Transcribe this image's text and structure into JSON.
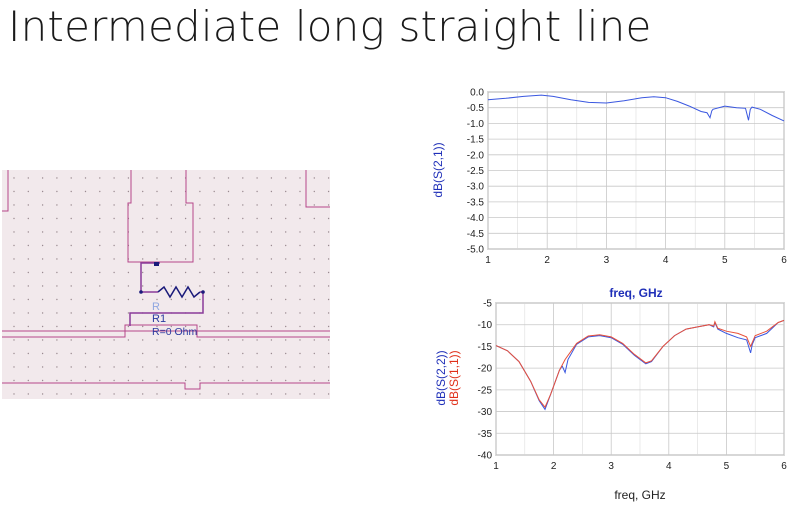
{
  "slide": {
    "title": "Intermediate long straight line"
  },
  "schematic": {
    "component": {
      "prefix": "R",
      "instance": "R1",
      "param": "R=0 Ohm"
    }
  },
  "chart_data": [
    {
      "type": "line",
      "xlabel": "freq, GHz",
      "ylabel": "dB(S(2,1))",
      "xlim": [
        1,
        6
      ],
      "ylim": [
        -5.0,
        0.0
      ],
      "xticks": [
        "1",
        "2",
        "3",
        "4",
        "5",
        "6"
      ],
      "yticks": [
        "0.0",
        "-0.5",
        "-1.0",
        "-1.5",
        "-2.0",
        "-2.5",
        "-3.0",
        "-3.5",
        "-4.0",
        "-4.5",
        "-5.0"
      ],
      "grid": true,
      "series": [
        {
          "name": "dB(S(2,1))",
          "color": "#3a57e0",
          "x": [
            1.0,
            1.3,
            1.6,
            1.9,
            2.1,
            2.4,
            2.7,
            3.0,
            3.3,
            3.6,
            3.8,
            4.0,
            4.2,
            4.4,
            4.6,
            4.7,
            4.75,
            4.78,
            4.8,
            5.0,
            5.2,
            5.35,
            5.4,
            5.43,
            5.46,
            5.6,
            5.8,
            6.0
          ],
          "y": [
            -0.25,
            -0.2,
            -0.14,
            -0.1,
            -0.14,
            -0.25,
            -0.33,
            -0.35,
            -0.28,
            -0.18,
            -0.15,
            -0.18,
            -0.3,
            -0.45,
            -0.62,
            -0.66,
            -0.82,
            -0.6,
            -0.55,
            -0.45,
            -0.5,
            -0.52,
            -0.9,
            -0.55,
            -0.48,
            -0.55,
            -0.75,
            -0.92
          ]
        }
      ]
    },
    {
      "type": "line",
      "xlabel": "freq, GHz",
      "ylabel": "dB(S(2,2))",
      "ylabel2": "dB(S(1,1))",
      "xlim": [
        1,
        6
      ],
      "ylim": [
        -40,
        -5
      ],
      "xticks": [
        "1",
        "2",
        "3",
        "4",
        "5",
        "6"
      ],
      "yticks": [
        "-5",
        "-10",
        "-15",
        "-20",
        "-25",
        "-30",
        "-35",
        "-40"
      ],
      "grid": true,
      "series": [
        {
          "name": "dB(S(2,2))",
          "color": "#3a57e0",
          "x": [
            1.0,
            1.2,
            1.4,
            1.6,
            1.75,
            1.85,
            1.95,
            2.1,
            2.15,
            2.2,
            2.25,
            2.4,
            2.6,
            2.8,
            3.0,
            3.2,
            3.4,
            3.6,
            3.7,
            3.9,
            4.1,
            4.3,
            4.5,
            4.7,
            4.78,
            4.8,
            4.85,
            5.0,
            5.2,
            5.35,
            5.42,
            5.45,
            5.5,
            5.7,
            5.9,
            6.0
          ],
          "y": [
            -14.8,
            -16.0,
            -18.5,
            -23.0,
            -27.5,
            -29.5,
            -26.0,
            -20.5,
            -19.5,
            -21.0,
            -18.0,
            -14.5,
            -12.8,
            -12.5,
            -13.0,
            -14.5,
            -17.0,
            -19.0,
            -18.5,
            -15.0,
            -12.5,
            -11.0,
            -10.5,
            -10.0,
            -10.5,
            -9.5,
            -11.0,
            -12.0,
            -13.0,
            -13.5,
            -16.5,
            -14.5,
            -13.0,
            -12.0,
            -9.5,
            -9.0
          ]
        },
        {
          "name": "dB(S(1,1))",
          "color": "#e8513a",
          "x": [
            1.0,
            1.2,
            1.4,
            1.6,
            1.75,
            1.85,
            1.95,
            2.1,
            2.2,
            2.4,
            2.6,
            2.8,
            3.0,
            3.2,
            3.4,
            3.6,
            3.7,
            3.9,
            4.1,
            4.3,
            4.5,
            4.7,
            4.78,
            4.8,
            4.85,
            5.0,
            5.2,
            5.35,
            5.42,
            5.5,
            5.7,
            5.9,
            6.0
          ],
          "y": [
            -14.8,
            -16.0,
            -18.5,
            -23.0,
            -27.3,
            -29.0,
            -26.0,
            -20.5,
            -18.0,
            -14.3,
            -12.6,
            -12.3,
            -12.8,
            -14.3,
            -16.8,
            -18.8,
            -18.3,
            -15.0,
            -12.5,
            -11.0,
            -10.5,
            -10.0,
            -10.3,
            -9.3,
            -10.8,
            -11.5,
            -12.0,
            -12.8,
            -15.0,
            -12.5,
            -11.5,
            -9.5,
            -9.0
          ]
        }
      ]
    }
  ]
}
